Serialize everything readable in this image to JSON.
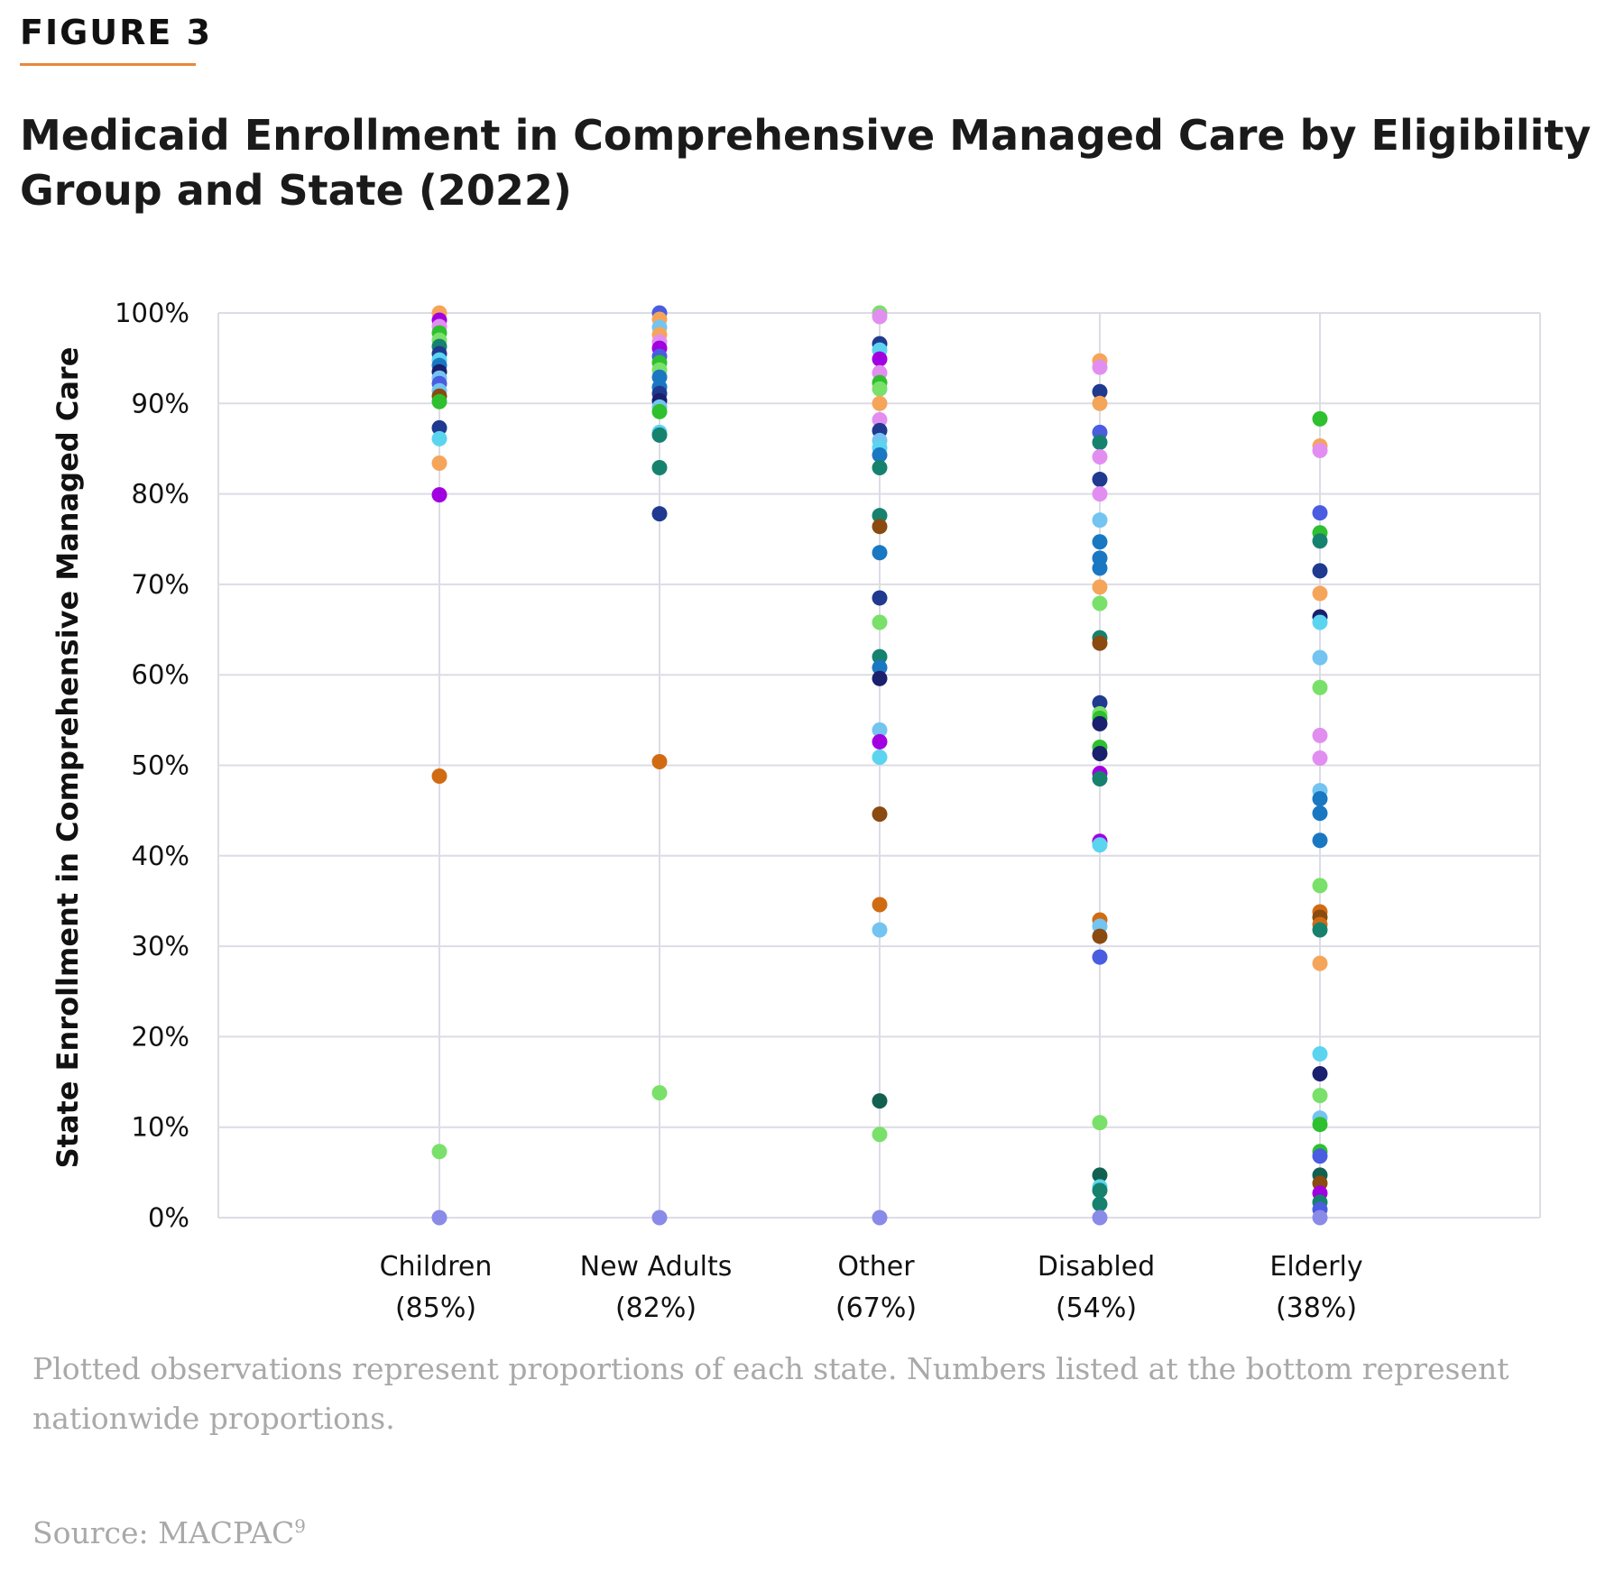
{
  "figure_label": "FIGURE 3",
  "title": "Medicaid Enrollment in Comprehensive Managed Care by Eligibility Group and State (2022)",
  "note": "Plotted observations represent proportions of each state. Numbers listed at the bottom represent nationwide proportions.",
  "source": {
    "text": "Source: MACPAC",
    "sup": "9"
  },
  "colors": {
    "accent_rule": "#e8883a",
    "grid": "#dcdce6",
    "text_gray": "#a9a9a9"
  },
  "chart_data": {
    "type": "scatter",
    "ylabel": "State Enrollment in Comprehensive Managed Care",
    "ylim": [
      0,
      100
    ],
    "ytick_labels": [
      "0%",
      "10%",
      "20%",
      "30%",
      "40%",
      "50%",
      "60%",
      "70%",
      "80%",
      "90%",
      "100%"
    ],
    "grid": true,
    "categories": [
      {
        "name": "Children",
        "national": "(85%)"
      },
      {
        "name": "New Adults",
        "national": "(82%)"
      },
      {
        "name": "Other",
        "national": "(67%)"
      },
      {
        "name": "Disabled",
        "national": "(54%)"
      },
      {
        "name": "Elderly",
        "national": "(38%)"
      }
    ],
    "palette": [
      "#f5a55a",
      "#a100e0",
      "#2ec02e",
      "#1f3a8f",
      "#1a77c2",
      "#5bd4f0",
      "#73c4f0",
      "#16826e",
      "#8a4a10",
      "#d16b12",
      "#79e06a",
      "#116050",
      "#4a5ce0",
      "#e28ef0",
      "#1a1f6e",
      "#8a8ae8"
    ],
    "series": [
      {
        "category": "Children",
        "points": [
          {
            "y": 100,
            "c": 0
          },
          {
            "y": 99.2,
            "c": 1
          },
          {
            "y": 98.5,
            "c": 13
          },
          {
            "y": 97.8,
            "c": 2
          },
          {
            "y": 97,
            "c": 10
          },
          {
            "y": 96.3,
            "c": 7
          },
          {
            "y": 95.5,
            "c": 3
          },
          {
            "y": 94.8,
            "c": 5
          },
          {
            "y": 94.2,
            "c": 4
          },
          {
            "y": 93.5,
            "c": 14
          },
          {
            "y": 92.8,
            "c": 6
          },
          {
            "y": 92.2,
            "c": 12
          },
          {
            "y": 91.4,
            "c": 6
          },
          {
            "y": 90.8,
            "c": 8
          },
          {
            "y": 90.2,
            "c": 2
          },
          {
            "y": 87.3,
            "c": 3
          },
          {
            "y": 86.1,
            "c": 5
          },
          {
            "y": 83.4,
            "c": 0
          },
          {
            "y": 79.9,
            "c": 1
          },
          {
            "y": 48.8,
            "c": 9
          },
          {
            "y": 7.3,
            "c": 10
          },
          {
            "y": 0,
            "c": 15
          }
        ]
      },
      {
        "category": "New Adults",
        "points": [
          {
            "y": 100,
            "c": 12
          },
          {
            "y": 99.3,
            "c": 0
          },
          {
            "y": 98.4,
            "c": 6
          },
          {
            "y": 97.6,
            "c": 0
          },
          {
            "y": 96.8,
            "c": 13
          },
          {
            "y": 96.1,
            "c": 1
          },
          {
            "y": 95.2,
            "c": 12
          },
          {
            "y": 94.5,
            "c": 2
          },
          {
            "y": 93.7,
            "c": 10
          },
          {
            "y": 92.9,
            "c": 4
          },
          {
            "y": 91.8,
            "c": 4
          },
          {
            "y": 91.1,
            "c": 3
          },
          {
            "y": 90.3,
            "c": 14
          },
          {
            "y": 89.6,
            "c": 6
          },
          {
            "y": 89.1,
            "c": 2
          },
          {
            "y": 86.8,
            "c": 5
          },
          {
            "y": 86.5,
            "c": 7
          },
          {
            "y": 82.9,
            "c": 7
          },
          {
            "y": 77.8,
            "c": 3
          },
          {
            "y": 50.4,
            "c": 9
          },
          {
            "y": 13.8,
            "c": 10
          },
          {
            "y": 0,
            "c": 15
          }
        ]
      },
      {
        "category": "Other",
        "points": [
          {
            "y": 100,
            "c": 10
          },
          {
            "y": 99.6,
            "c": 13
          },
          {
            "y": 96.6,
            "c": 3
          },
          {
            "y": 95.9,
            "c": 5
          },
          {
            "y": 94.9,
            "c": 1
          },
          {
            "y": 93.4,
            "c": 13
          },
          {
            "y": 92.3,
            "c": 2
          },
          {
            "y": 91.6,
            "c": 10
          },
          {
            "y": 90,
            "c": 0
          },
          {
            "y": 88.2,
            "c": 13
          },
          {
            "y": 87,
            "c": 3
          },
          {
            "y": 85.9,
            "c": 6
          },
          {
            "y": 85.1,
            "c": 5
          },
          {
            "y": 84.3,
            "c": 4
          },
          {
            "y": 82.9,
            "c": 7
          },
          {
            "y": 77.6,
            "c": 7
          },
          {
            "y": 76.4,
            "c": 8
          },
          {
            "y": 73.5,
            "c": 4
          },
          {
            "y": 68.5,
            "c": 3
          },
          {
            "y": 65.8,
            "c": 10
          },
          {
            "y": 62,
            "c": 7
          },
          {
            "y": 60.8,
            "c": 4
          },
          {
            "y": 59.6,
            "c": 14
          },
          {
            "y": 53.9,
            "c": 6
          },
          {
            "y": 52.6,
            "c": 1
          },
          {
            "y": 50.9,
            "c": 5
          },
          {
            "y": 44.6,
            "c": 8
          },
          {
            "y": 34.6,
            "c": 9
          },
          {
            "y": 31.8,
            "c": 6
          },
          {
            "y": 12.9,
            "c": 11
          },
          {
            "y": 9.2,
            "c": 10
          },
          {
            "y": 0,
            "c": 15
          }
        ]
      },
      {
        "category": "Disabled",
        "points": [
          {
            "y": 94.7,
            "c": 0
          },
          {
            "y": 94,
            "c": 13
          },
          {
            "y": 91.3,
            "c": 3
          },
          {
            "y": 90,
            "c": 0
          },
          {
            "y": 86.8,
            "c": 12
          },
          {
            "y": 85.7,
            "c": 7
          },
          {
            "y": 84.1,
            "c": 13
          },
          {
            "y": 81.6,
            "c": 3
          },
          {
            "y": 80,
            "c": 13
          },
          {
            "y": 77.1,
            "c": 6
          },
          {
            "y": 74.7,
            "c": 4
          },
          {
            "y": 72.9,
            "c": 4
          },
          {
            "y": 71.8,
            "c": 4
          },
          {
            "y": 69.7,
            "c": 0
          },
          {
            "y": 67.9,
            "c": 10
          },
          {
            "y": 64.1,
            "c": 7
          },
          {
            "y": 63.5,
            "c": 8
          },
          {
            "y": 56.9,
            "c": 3
          },
          {
            "y": 55.7,
            "c": 10
          },
          {
            "y": 55.2,
            "c": 2
          },
          {
            "y": 54.6,
            "c": 14
          },
          {
            "y": 52,
            "c": 2
          },
          {
            "y": 51.3,
            "c": 14
          },
          {
            "y": 49.1,
            "c": 1
          },
          {
            "y": 48.5,
            "c": 7
          },
          {
            "y": 41.6,
            "c": 1
          },
          {
            "y": 41.2,
            "c": 5
          },
          {
            "y": 32.9,
            "c": 9
          },
          {
            "y": 32.2,
            "c": 6
          },
          {
            "y": 31.1,
            "c": 8
          },
          {
            "y": 28.8,
            "c": 12
          },
          {
            "y": 10.5,
            "c": 10
          },
          {
            "y": 4.7,
            "c": 11
          },
          {
            "y": 3.4,
            "c": 5
          },
          {
            "y": 3,
            "c": 7
          },
          {
            "y": 1.5,
            "c": 7
          },
          {
            "y": 0,
            "c": 15
          }
        ]
      },
      {
        "category": "Elderly",
        "points": [
          {
            "y": 88.3,
            "c": 2
          },
          {
            "y": 85.3,
            "c": 0
          },
          {
            "y": 84.8,
            "c": 13
          },
          {
            "y": 77.9,
            "c": 12
          },
          {
            "y": 75.7,
            "c": 2
          },
          {
            "y": 74.8,
            "c": 7
          },
          {
            "y": 71.5,
            "c": 3
          },
          {
            "y": 69,
            "c": 0
          },
          {
            "y": 66.4,
            "c": 14
          },
          {
            "y": 65.8,
            "c": 5
          },
          {
            "y": 61.9,
            "c": 6
          },
          {
            "y": 58.6,
            "c": 10
          },
          {
            "y": 53.3,
            "c": 13
          },
          {
            "y": 50.8,
            "c": 13
          },
          {
            "y": 47.2,
            "c": 6
          },
          {
            "y": 46.3,
            "c": 4
          },
          {
            "y": 44.7,
            "c": 4
          },
          {
            "y": 41.7,
            "c": 4
          },
          {
            "y": 36.7,
            "c": 10
          },
          {
            "y": 33.8,
            "c": 9
          },
          {
            "y": 33.2,
            "c": 8
          },
          {
            "y": 32.4,
            "c": 9
          },
          {
            "y": 31.8,
            "c": 7
          },
          {
            "y": 28.1,
            "c": 0
          },
          {
            "y": 18.1,
            "c": 5
          },
          {
            "y": 15.9,
            "c": 14
          },
          {
            "y": 13.5,
            "c": 10
          },
          {
            "y": 11,
            "c": 6
          },
          {
            "y": 10.3,
            "c": 2
          },
          {
            "y": 7.3,
            "c": 2
          },
          {
            "y": 6.8,
            "c": 12
          },
          {
            "y": 4.7,
            "c": 11
          },
          {
            "y": 3.8,
            "c": 8
          },
          {
            "y": 2.7,
            "c": 1
          },
          {
            "y": 1.7,
            "c": 7
          },
          {
            "y": 0.9,
            "c": 12
          },
          {
            "y": 0,
            "c": 15
          }
        ]
      }
    ]
  }
}
